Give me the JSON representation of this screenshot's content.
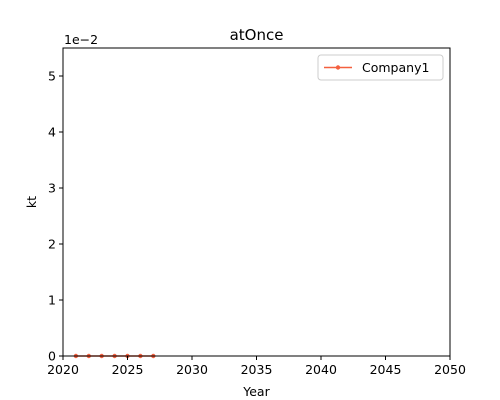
{
  "chart_data": {
    "type": "line",
    "title": "atOnce",
    "xlabel": "Year",
    "ylabel": "kt",
    "offset_text": "1e−2",
    "xlim": [
      2020,
      2050
    ],
    "ylim": [
      0,
      5.5
    ],
    "x_ticks": [
      2020,
      2025,
      2030,
      2035,
      2040,
      2045,
      2050
    ],
    "y_ticks": [
      0,
      1,
      2,
      3,
      4,
      5
    ],
    "grid": false,
    "legend_position": "top-right",
    "series": [
      {
        "name": "Company1",
        "color": "#f4603f",
        "marker": "circle",
        "x": [
          2021,
          2022,
          2023,
          2024,
          2025,
          2026,
          2027
        ],
        "y": [
          0,
          0,
          0,
          0,
          0,
          0,
          0
        ]
      }
    ]
  }
}
